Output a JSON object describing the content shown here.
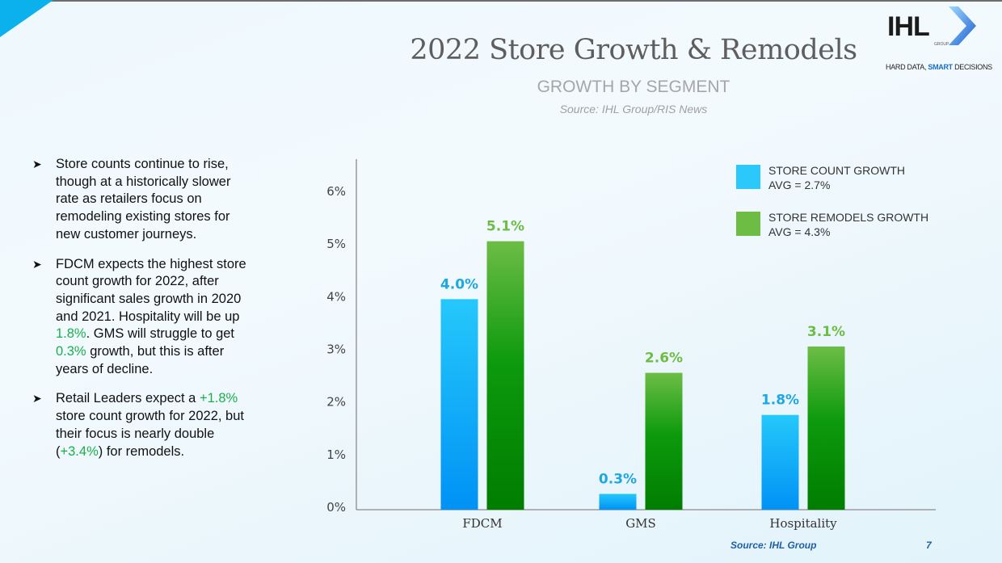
{
  "header": {
    "title": "2022 Store Growth & Remodels",
    "subtitle": "GROWTH BY SEGMENT",
    "source": "Source: IHL Group/RIS News"
  },
  "logo": {
    "name": "IHL",
    "group": "GROUP",
    "tagline_prefix": "HARD DATA, ",
    "tagline_bold": "SMART",
    "tagline_suffix": " DECISIONS"
  },
  "bullets": [
    {
      "parts": [
        {
          "text": "Store counts continue to rise, though at a historically slower rate as retailers focus on remodeling existing stores for new customer journeys.",
          "highlight": false
        }
      ]
    },
    {
      "parts": [
        {
          "text": "FDCM expects the highest store count growth for 2022, after significant sales growth in 2020 and 2021. Hospitality will be up ",
          "highlight": false
        },
        {
          "text": "1.8%",
          "highlight": true
        },
        {
          "text": ". GMS will struggle to get ",
          "highlight": false
        },
        {
          "text": "0.3%",
          "highlight": true
        },
        {
          "text": " growth, but this is after years of decline.",
          "highlight": false
        }
      ]
    },
    {
      "parts": [
        {
          "text": "Retail Leaders expect a ",
          "highlight": false
        },
        {
          "text": "+1.8%",
          "highlight": true
        },
        {
          "text": " store count growth for 2022, but their focus is nearly double (",
          "highlight": false
        },
        {
          "text": "+3.4%",
          "highlight": true
        },
        {
          "text": ") for remodels.",
          "highlight": false
        }
      ]
    }
  ],
  "footer": {
    "source": "Source: IHL Group",
    "page": "7"
  },
  "colors": {
    "blue": "#25c8fb",
    "blue_dark": "#0092f5",
    "green": "#6dbd45",
    "green_dark": "#007d00",
    "label_blue": "#1ea7e1",
    "label_green": "#6dbd45",
    "highlight": "#18b04c"
  },
  "chart_data": {
    "type": "bar",
    "title": "GROWTH BY SEGMENT",
    "categories": [
      "FDCM",
      "GMS",
      "Hospitality"
    ],
    "series": [
      {
        "name": "STORE COUNT GROWTH",
        "avg_label": "AVG = 2.7%",
        "values": [
          4.0,
          0.3,
          1.8
        ],
        "labels": [
          "4.0%",
          "0.3%",
          "1.8%"
        ]
      },
      {
        "name": "STORE REMODELS GROWTH",
        "avg_label": "AVG = 4.3%",
        "values": [
          5.1,
          2.6,
          3.1
        ],
        "labels": [
          "5.1%",
          "2.6%",
          "3.1%"
        ]
      }
    ],
    "ylim": [
      0,
      6
    ],
    "yticks": [
      "0%",
      "1%",
      "2%",
      "3%",
      "4%",
      "5%",
      "6%"
    ],
    "xlabel": "",
    "ylabel": "",
    "grid": false,
    "legend": "top-right"
  }
}
